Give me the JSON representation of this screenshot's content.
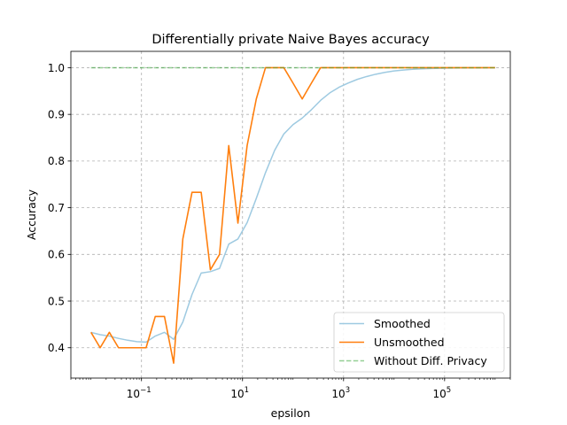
{
  "chart_data": {
    "type": "line",
    "title": "Differentially private Naive Bayes accuracy",
    "xlabel": "epsilon",
    "ylabel": "Accuracy",
    "xscale": "log",
    "xlim": [
      0.004,
      2000000
    ],
    "ylim": [
      0.335,
      1.035
    ],
    "grid": true,
    "legend_position": "lower-right",
    "x_ticks": [
      {
        "value": 0.1,
        "base": "10",
        "exp": "−1"
      },
      {
        "value": 10,
        "base": "10",
        "exp": "1"
      },
      {
        "value": 1000,
        "base": "10",
        "exp": "3"
      },
      {
        "value": 100000,
        "base": "10",
        "exp": "5"
      }
    ],
    "y_ticks": [
      {
        "value": 0.4,
        "label": "0.4"
      },
      {
        "value": 0.5,
        "label": "0.5"
      },
      {
        "value": 0.6,
        "label": "0.6"
      },
      {
        "value": 0.7,
        "label": "0.7"
      },
      {
        "value": 0.8,
        "label": "0.8"
      },
      {
        "value": 0.9,
        "label": "0.9"
      },
      {
        "value": 1.0,
        "label": "1.0"
      }
    ],
    "series": [
      {
        "name": "Smoothed",
        "color": "#9ecae1",
        "style": "solid",
        "x": [
          0.01,
          0.0152,
          0.0231,
          0.0351,
          0.0534,
          0.0811,
          0.1233,
          0.1874,
          0.2848,
          0.4329,
          0.6579,
          1.0,
          1.52,
          2.31,
          3.51,
          5.34,
          8.11,
          12.33,
          18.74,
          28.48,
          43.29,
          65.79,
          100,
          152,
          231,
          351,
          534,
          811,
          1233,
          1874,
          2848,
          4329,
          6579,
          10000,
          15200,
          23100,
          35100,
          53400,
          81100,
          123300,
          187400,
          284800,
          432900,
          657900,
          1000000
        ],
        "y": [
          0.433,
          0.428,
          0.425,
          0.42,
          0.416,
          0.413,
          0.412,
          0.425,
          0.433,
          0.418,
          0.455,
          0.514,
          0.56,
          0.563,
          0.57,
          0.622,
          0.633,
          0.668,
          0.72,
          0.775,
          0.823,
          0.858,
          0.878,
          0.892,
          0.91,
          0.93,
          0.946,
          0.958,
          0.967,
          0.975,
          0.981,
          0.986,
          0.99,
          0.993,
          0.995,
          0.9965,
          0.9975,
          0.9983,
          0.9988,
          0.9992,
          0.9994,
          0.9996,
          0.9997,
          0.9998,
          0.9999
        ]
      },
      {
        "name": "Unsmoothed",
        "color": "#ff7f0e",
        "style": "solid",
        "x": [
          0.01,
          0.0152,
          0.0231,
          0.0351,
          0.0534,
          0.0811,
          0.1233,
          0.1874,
          0.2848,
          0.4329,
          0.6579,
          1.0,
          1.52,
          2.31,
          3.51,
          5.34,
          8.11,
          12.33,
          18.74,
          28.48,
          43.29,
          65.79,
          100,
          152,
          231,
          351,
          534,
          811,
          1233,
          1874,
          2848,
          4329,
          6579,
          10000,
          15200,
          23100,
          35100,
          53400,
          81100,
          123300,
          187400,
          284800,
          432900,
          657900,
          1000000
        ],
        "y": [
          0.433,
          0.4,
          0.433,
          0.4,
          0.4,
          0.4,
          0.4,
          0.467,
          0.467,
          0.367,
          0.633,
          0.733,
          0.733,
          0.567,
          0.6,
          0.833,
          0.667,
          0.833,
          0.933,
          1.0,
          1.0,
          1.0,
          0.967,
          0.933,
          0.967,
          1.0,
          1.0,
          1.0,
          1.0,
          1.0,
          1.0,
          1.0,
          1.0,
          1.0,
          1.0,
          1.0,
          1.0,
          1.0,
          1.0,
          1.0,
          1.0,
          1.0,
          1.0,
          1.0,
          1.0
        ]
      },
      {
        "name": "Without Diff. Privacy",
        "color": "#2ca02c",
        "style": "dashed",
        "x": [
          0.01,
          1000000
        ],
        "y": [
          1.0,
          1.0
        ]
      }
    ]
  }
}
